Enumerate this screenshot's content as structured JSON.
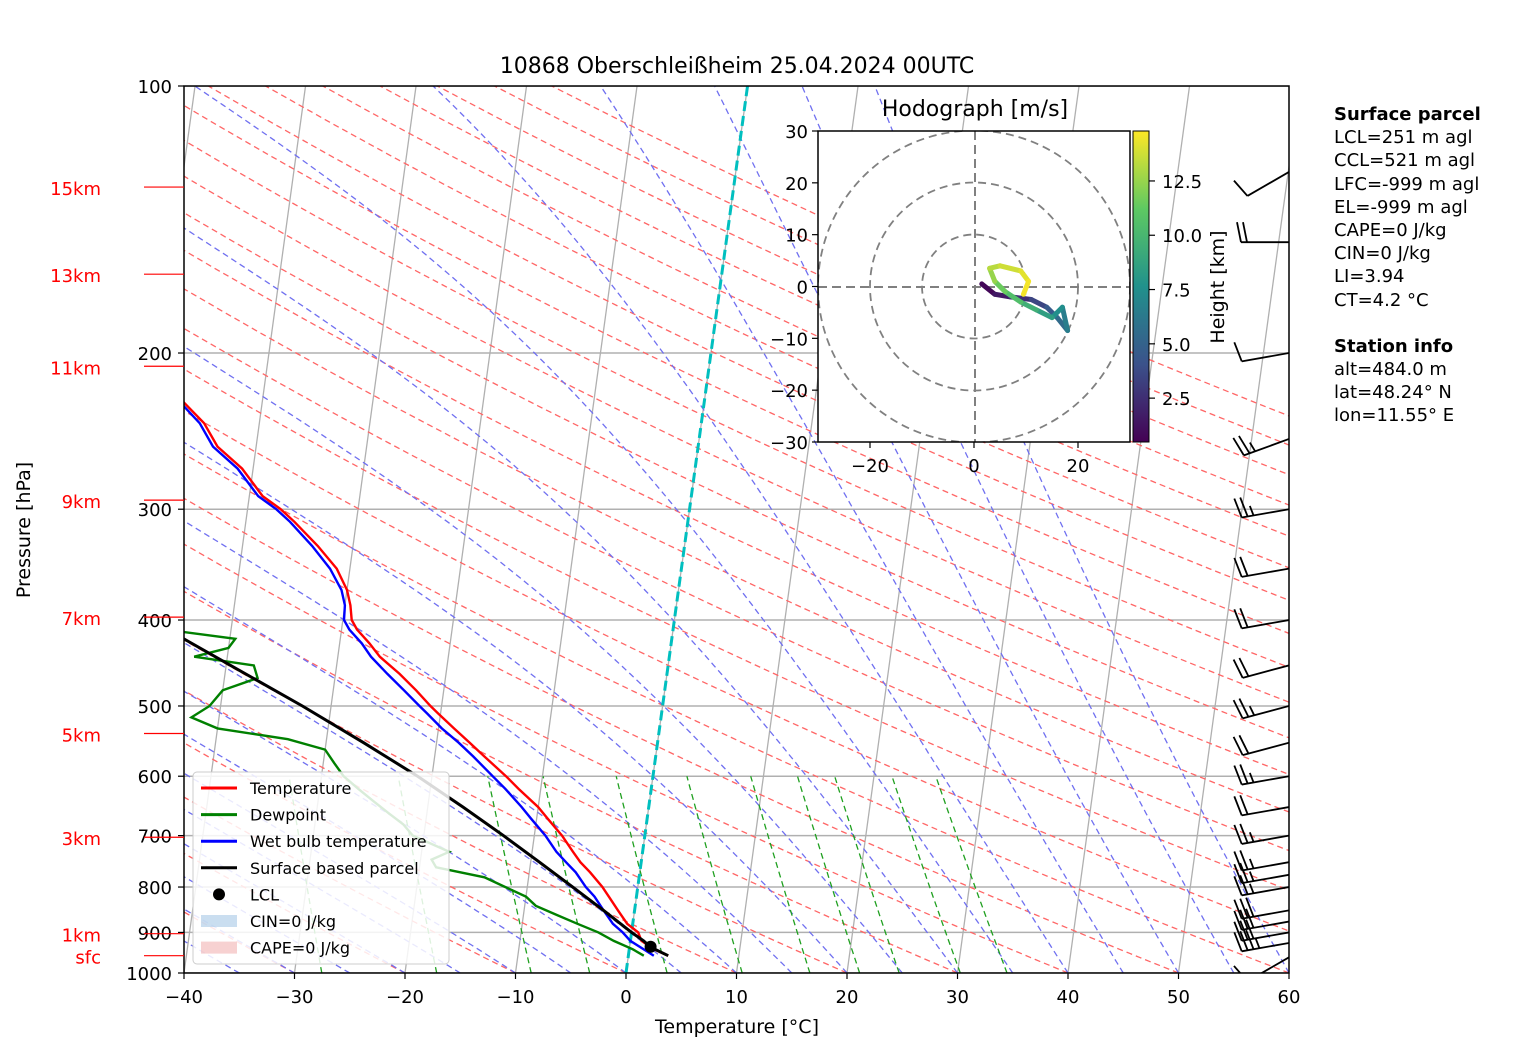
{
  "chart_data": [
    {
      "type": "skew-t",
      "title": "10868 Oberschleißheim 25.04.2024 00UTC",
      "xlabel": "Temperature [°C]",
      "ylabel": "Pressure [hPa]",
      "xlim": [
        -40,
        60
      ],
      "ylim": [
        1000,
        100
      ],
      "x_ticks": [
        "−40",
        "−30",
        "−20",
        "−10",
        "0",
        "10",
        "20",
        "30",
        "40",
        "50",
        "60"
      ],
      "y_ticks": [
        "100",
        "200",
        "300",
        "400",
        "500",
        "600",
        "700",
        "800",
        "900",
        "1000"
      ],
      "grid": true,
      "height_markers": [
        {
          "label": "15km",
          "p": 130
        },
        {
          "label": "13km",
          "p": 163
        },
        {
          "label": "11km",
          "p": 207
        },
        {
          "label": "9km",
          "p": 293
        },
        {
          "label": "7km",
          "p": 397
        },
        {
          "label": "5km",
          "p": 537
        },
        {
          "label": "3km",
          "p": 703
        },
        {
          "label": "1km",
          "p": 903
        },
        {
          "label": "sfc",
          "p": 956
        }
      ],
      "legend": {
        "placement": "lower-left",
        "entries": [
          {
            "label": "Temperature",
            "color": "#ff0000",
            "kind": "line"
          },
          {
            "label": "Dewpoint",
            "color": "#008000",
            "kind": "line"
          },
          {
            "label": "Wet bulb temperature",
            "color": "#0000ff",
            "kind": "line"
          },
          {
            "label": "Surface based parcel",
            "color": "#000000",
            "kind": "line"
          },
          {
            "label": "LCL",
            "color": "#000000",
            "kind": "dot"
          },
          {
            "label": "CIN=0 J/kg",
            "color": "#a6c8e6",
            "kind": "patch"
          },
          {
            "label": "CAPE=0 J/kg",
            "color": "#f2b3b3",
            "kind": "patch"
          }
        ]
      },
      "series": [
        {
          "name": "Temperature",
          "color": "#ff0000",
          "points": [
            [
              956,
              3.6
            ],
            [
              940,
              2.2
            ],
            [
              920,
              1.0
            ],
            [
              900,
              0.6
            ],
            [
              880,
              -0.5
            ],
            [
              850,
              -1.5
            ],
            [
              820,
              -2.5
            ],
            [
              800,
              -3.2
            ],
            [
              770,
              -4.5
            ],
            [
              750,
              -5.5
            ],
            [
              730,
              -6.3
            ],
            [
              700,
              -7.5
            ],
            [
              670,
              -9.0
            ],
            [
              650,
              -10.0
            ],
            [
              620,
              -12.0
            ],
            [
              600,
              -13.3
            ],
            [
              570,
              -15.5
            ],
            [
              550,
              -17.0
            ],
            [
              530,
              -18.6
            ],
            [
              510,
              -20.2
            ],
            [
              500,
              -21.0
            ],
            [
              480,
              -22.5
            ],
            [
              460,
              -24.2
            ],
            [
              440,
              -26.2
            ],
            [
              425,
              -27.3
            ],
            [
              410,
              -28.6
            ],
            [
              400,
              -29.2
            ],
            [
              385,
              -29.5
            ],
            [
              370,
              -30.0
            ],
            [
              350,
              -31.2
            ],
            [
              330,
              -33.2
            ],
            [
              310,
              -35.6
            ],
            [
              300,
              -37.0
            ],
            [
              290,
              -38.8
            ],
            [
              270,
              -41.0
            ],
            [
              255,
              -43.5
            ],
            [
              240,
              -45.0
            ],
            [
              225,
              -47.5
            ],
            [
              210,
              -49.0
            ],
            [
              200,
              -50.8
            ],
            [
              185,
              -52.5
            ],
            [
              170,
              -54.0
            ],
            [
              160,
              -55.0
            ],
            [
              150,
              -56.2
            ],
            [
              140,
              -57.0
            ],
            [
              130,
              -57.3
            ],
            [
              125,
              -57.0
            ]
          ]
        },
        {
          "name": "Dewpoint",
          "color": "#008000",
          "points": [
            [
              956,
              1.4
            ],
            [
              940,
              0.3
            ],
            [
              920,
              -1.5
            ],
            [
              900,
              -3.0
            ],
            [
              880,
              -5.0
            ],
            [
              860,
              -7.0
            ],
            [
              840,
              -9.0
            ],
            [
              820,
              -10.0
            ],
            [
              800,
              -12.0
            ],
            [
              780,
              -14.0
            ],
            [
              760,
              -18.5
            ],
            [
              745,
              -19.0
            ],
            [
              730,
              -17.5
            ],
            [
              700,
              -21.0
            ],
            [
              680,
              -22.0
            ],
            [
              660,
              -23.5
            ],
            [
              640,
              -25.0
            ],
            [
              620,
              -26.5
            ],
            [
              600,
              -28.0
            ],
            [
              580,
              -29.0
            ],
            [
              560,
              -30.0
            ],
            [
              545,
              -33.5
            ],
            [
              530,
              -40.0
            ],
            [
              515,
              -42.5
            ],
            [
              500,
              -41.0
            ],
            [
              480,
              -40.0
            ],
            [
              465,
              -37.0
            ],
            [
              450,
              -37.5
            ],
            [
              440,
              -43.0
            ],
            [
              430,
              -40.0
            ],
            [
              420,
              -39.5
            ],
            [
              410,
              -46.0
            ],
            [
              400,
              -48.0
            ],
            [
              390,
              -50.0
            ],
            [
              375,
              -52.0
            ],
            [
              360,
              -52.0
            ],
            [
              350,
              -54.0
            ],
            [
              340,
              -55.5
            ],
            [
              325,
              -58.0
            ],
            [
              315,
              -58.0
            ],
            [
              305,
              -57.0
            ],
            [
              295,
              -55.5
            ],
            [
              290,
              -56.0
            ],
            [
              280,
              -59.0
            ],
            [
              270,
              -59.0
            ],
            [
              260,
              -58.5
            ],
            [
              250,
              -60.0
            ],
            [
              240,
              -60.0
            ],
            [
              225,
              -62.0
            ],
            [
              210,
              -62.0
            ],
            [
              200,
              -63.0
            ],
            [
              190,
              -64.0
            ],
            [
              180,
              -65.0
            ],
            [
              170,
              -66.5
            ],
            [
              160,
              -68.0
            ],
            [
              150,
              -69.5
            ],
            [
              140,
              -71.0
            ],
            [
              130,
              -72.3
            ]
          ]
        },
        {
          "name": "Wet bulb temperature",
          "color": "#0000ff",
          "points": [
            [
              956,
              2.3
            ],
            [
              940,
              1.3
            ],
            [
              920,
              0.0
            ],
            [
              900,
              -0.8
            ],
            [
              880,
              -1.8
            ],
            [
              850,
              -2.8
            ],
            [
              820,
              -3.8
            ],
            [
              800,
              -4.7
            ],
            [
              770,
              -5.8
            ],
            [
              750,
              -6.8
            ],
            [
              730,
              -7.8
            ],
            [
              700,
              -9.0
            ],
            [
              670,
              -10.5
            ],
            [
              650,
              -11.5
            ],
            [
              620,
              -13.2
            ],
            [
              600,
              -14.5
            ],
            [
              570,
              -16.5
            ],
            [
              550,
              -18.0
            ],
            [
              530,
              -19.7
            ],
            [
              510,
              -21.2
            ],
            [
              500,
              -22.0
            ],
            [
              480,
              -23.6
            ],
            [
              460,
              -25.3
            ],
            [
              440,
              -27.0
            ],
            [
              425,
              -28.0
            ],
            [
              410,
              -29.3
            ],
            [
              400,
              -29.9
            ],
            [
              385,
              -30.0
            ],
            [
              370,
              -30.5
            ],
            [
              350,
              -31.8
            ],
            [
              330,
              -33.7
            ],
            [
              310,
              -36.0
            ],
            [
              300,
              -37.4
            ],
            [
              290,
              -39.2
            ],
            [
              270,
              -41.4
            ],
            [
              255,
              -43.9
            ],
            [
              240,
              -45.4
            ],
            [
              225,
              -47.8
            ],
            [
              210,
              -49.3
            ],
            [
              200,
              -51.1
            ],
            [
              185,
              -52.8
            ],
            [
              170,
              -54.3
            ],
            [
              160,
              -55.3
            ],
            [
              150,
              -56.5
            ],
            [
              140,
              -57.3
            ],
            [
              130,
              -57.6
            ],
            [
              125,
              -57.3
            ]
          ]
        },
        {
          "name": "Surface based parcel",
          "color": "#000000",
          "points": [
            [
              956,
              3.6
            ],
            [
              935,
              1.9
            ],
            [
              920,
              1.2
            ],
            [
              900,
              0.0
            ],
            [
              850,
              -2.8
            ],
            [
              800,
              -5.9
            ],
            [
              750,
              -9.2
            ],
            [
              700,
              -12.8
            ],
            [
              650,
              -16.8
            ],
            [
              600,
              -21.3
            ],
            [
              550,
              -26.6
            ],
            [
              500,
              -32.6
            ],
            [
              450,
              -39.6
            ],
            [
              400,
              -47.4
            ],
            [
              350,
              -56.0
            ],
            [
              300,
              -65.0
            ],
            [
              250,
              -74.5
            ],
            [
              200,
              -85.0
            ]
          ]
        }
      ],
      "lcl": {
        "p": 934,
        "t": 1.9
      },
      "zero_isotherm_color": "#00bfbf",
      "wind_barbs": [
        {
          "p": 960,
          "dir": 240,
          "spd": 10
        },
        {
          "p": 925,
          "dir": 260,
          "spd": 35
        },
        {
          "p": 900,
          "dir": 260,
          "spd": 30
        },
        {
          "p": 875,
          "dir": 260,
          "spd": 30
        },
        {
          "p": 850,
          "dir": 260,
          "spd": 30
        },
        {
          "p": 800,
          "dir": 260,
          "spd": 25
        },
        {
          "p": 775,
          "dir": 260,
          "spd": 25
        },
        {
          "p": 750,
          "dir": 260,
          "spd": 25
        },
        {
          "p": 700,
          "dir": 260,
          "spd": 25
        },
        {
          "p": 650,
          "dir": 260,
          "spd": 20
        },
        {
          "p": 600,
          "dir": 260,
          "spd": 25
        },
        {
          "p": 550,
          "dir": 255,
          "spd": 20
        },
        {
          "p": 500,
          "dir": 255,
          "spd": 25
        },
        {
          "p": 450,
          "dir": 255,
          "spd": 20
        },
        {
          "p": 400,
          "dir": 260,
          "spd": 20
        },
        {
          "p": 350,
          "dir": 260,
          "spd": 20
        },
        {
          "p": 300,
          "dir": 260,
          "spd": 25
        },
        {
          "p": 250,
          "dir": 250,
          "spd": 25
        },
        {
          "p": 200,
          "dir": 260,
          "spd": 10
        },
        {
          "p": 150,
          "dir": 270,
          "spd": 20
        },
        {
          "p": 125,
          "dir": 240,
          "spd": 10
        }
      ]
    },
    {
      "type": "hodograph",
      "title": "Hodograph [m/s]",
      "xlim": [
        -30,
        30
      ],
      "ylim": [
        -30,
        30
      ],
      "x_ticks": [
        "−20",
        "0",
        "20"
      ],
      "y_ticks": [
        "30",
        "20",
        "10",
        "0",
        "−10",
        "−20",
        "−30"
      ],
      "rings": [
        10,
        20,
        30
      ],
      "colorbar": {
        "label": "Height [km]",
        "ticks": [
          "2.5",
          "5.0",
          "7.5",
          "10.0",
          "12.5"
        ],
        "range": [
          0.48,
          14.8
        ],
        "colormap": "viridis"
      },
      "trace": [
        {
          "u": 1.5,
          "v": 0.5,
          "h": 0.5
        },
        {
          "u": 4,
          "v": -1.5,
          "h": 1.0
        },
        {
          "u": 7,
          "v": -2,
          "h": 2.0
        },
        {
          "u": 11,
          "v": -2.5,
          "h": 3.0
        },
        {
          "u": 14,
          "v": -4,
          "h": 4.0
        },
        {
          "u": 16,
          "v": -6,
          "h": 5.0
        },
        {
          "u": 18,
          "v": -8.5,
          "h": 6.0
        },
        {
          "u": 17,
          "v": -4,
          "h": 7.0
        },
        {
          "u": 15,
          "v": -6,
          "h": 8.0
        },
        {
          "u": 12,
          "v": -4.5,
          "h": 9.0
        },
        {
          "u": 9,
          "v": -3,
          "h": 10.0
        },
        {
          "u": 6,
          "v": -1,
          "h": 11.0
        },
        {
          "u": 4,
          "v": 1,
          "h": 12.0
        },
        {
          "u": 3,
          "v": 3.5,
          "h": 13.0
        },
        {
          "u": 5,
          "v": 4,
          "h": 13.5
        },
        {
          "u": 9,
          "v": 3,
          "h": 14.0
        },
        {
          "u": 10.5,
          "v": 1,
          "h": 14.4
        },
        {
          "u": 9.5,
          "v": -1.5,
          "h": 14.8
        }
      ]
    }
  ],
  "surface_parcel": {
    "heading": "Surface parcel",
    "lines": [
      "LCL=251 m agl",
      "CCL=521 m agl",
      "LFC=-999 m agl",
      "EL=-999 m agl",
      "CAPE=0 J/kg",
      "CIN=0 J/kg",
      "LI=3.94",
      "CT=4.2 °C"
    ]
  },
  "station_info": {
    "heading": "Station info",
    "lines": [
      "alt=484.0 m",
      "lat=48.24° N",
      "lon=11.55° E"
    ]
  }
}
